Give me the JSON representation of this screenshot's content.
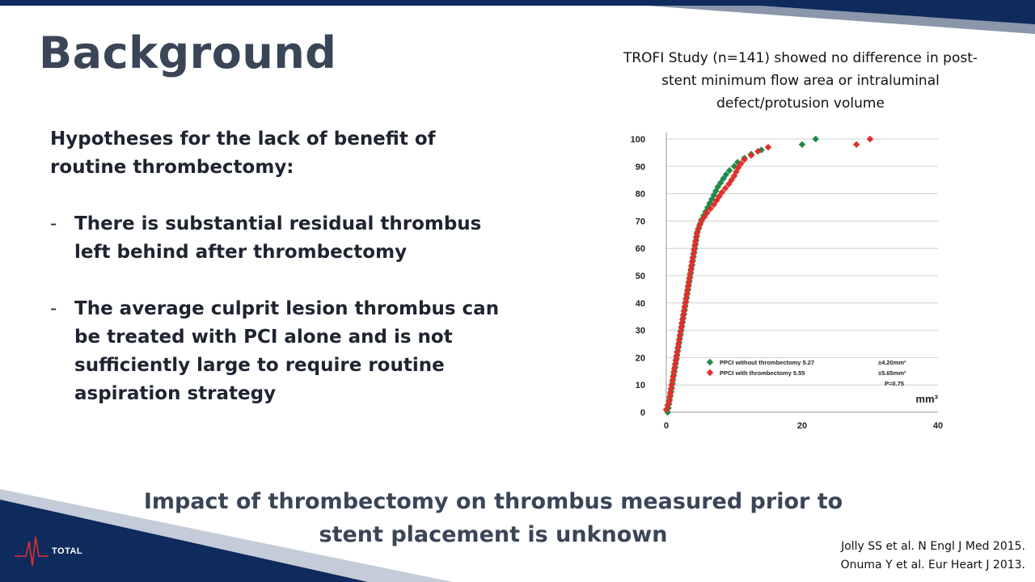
{
  "slide": {
    "title": "Background",
    "hypotheses_heading": "Hypotheses for the lack of benefit of routine thrombectomy:",
    "bullets": [
      {
        "dash": "-",
        "text": "There is substantial residual thrombus left behind after thrombectomy"
      },
      {
        "dash": "-",
        "text": "The average culprit lesion thrombus can be treated with PCI alone and is not sufficiently large to require routine aspiration strategy"
      }
    ],
    "chart_caption": "TROFI Study (n=141) showed no difference in post-stent minimum flow area or intraluminal defect/protusion volume",
    "impact_statement": "Impact of thrombectomy on thrombus measured prior to stent placement is unknown",
    "references": [
      "Jolly SS et al. N Engl J Med 2015.",
      "Onuma Y et al.  Eur Heart J 2013."
    ],
    "logo_text": "TOTAL",
    "colors": {
      "navy": "#0f2a5c",
      "title": "#3a4558",
      "green": "#1f8a4c",
      "red": "#e0302a"
    }
  },
  "chart_data": {
    "type": "scatter",
    "title": "",
    "xlabel": "mm³",
    "ylabel": "",
    "xlim": [
      0,
      40
    ],
    "ylim": [
      0,
      100
    ],
    "x_ticks": [
      0,
      20,
      40
    ],
    "y_ticks": [
      0,
      10,
      20,
      30,
      40,
      50,
      60,
      70,
      80,
      90,
      100
    ],
    "grid": true,
    "legend_position": "lower-right",
    "legend_stats": [
      "±4.20mm³",
      "±5.65mm³"
    ],
    "p_value_label": "P=0.75",
    "series": [
      {
        "name": "PPCI without thrombectomy 5.27",
        "color": "#1f8a4c",
        "points": [
          [
            0.2,
            0
          ],
          [
            0.3,
            1.5
          ],
          [
            0.4,
            3
          ],
          [
            0.5,
            4.5
          ],
          [
            0.6,
            6
          ],
          [
            0.7,
            7.5
          ],
          [
            0.8,
            9
          ],
          [
            0.9,
            10.5
          ],
          [
            1.0,
            12
          ],
          [
            1.1,
            13.5
          ],
          [
            1.2,
            15
          ],
          [
            1.3,
            16.5
          ],
          [
            1.4,
            18
          ],
          [
            1.5,
            19.5
          ],
          [
            1.6,
            21
          ],
          [
            1.7,
            22.5
          ],
          [
            1.8,
            24
          ],
          [
            1.9,
            25.5
          ],
          [
            2.0,
            27
          ],
          [
            2.1,
            28.5
          ],
          [
            2.2,
            30
          ],
          [
            2.3,
            31.5
          ],
          [
            2.4,
            33
          ],
          [
            2.5,
            34.5
          ],
          [
            2.6,
            36
          ],
          [
            2.7,
            37.5
          ],
          [
            2.8,
            39
          ],
          [
            2.9,
            40.5
          ],
          [
            3.0,
            42
          ],
          [
            3.1,
            43.5
          ],
          [
            3.2,
            45
          ],
          [
            3.3,
            46.5
          ],
          [
            3.4,
            48
          ],
          [
            3.5,
            49.5
          ],
          [
            3.6,
            51
          ],
          [
            3.7,
            52.5
          ],
          [
            3.8,
            54
          ],
          [
            3.9,
            55.5
          ],
          [
            4.0,
            57
          ],
          [
            4.1,
            58.5
          ],
          [
            4.2,
            60
          ],
          [
            4.3,
            61.5
          ],
          [
            4.4,
            63
          ],
          [
            4.5,
            64.5
          ],
          [
            4.6,
            66
          ],
          [
            4.8,
            67.5
          ],
          [
            5.0,
            69
          ],
          [
            5.2,
            70.5
          ],
          [
            5.5,
            72
          ],
          [
            5.8,
            73.5
          ],
          [
            6.1,
            75
          ],
          [
            6.4,
            76.5
          ],
          [
            6.7,
            78
          ],
          [
            7.0,
            79.5
          ],
          [
            7.3,
            81
          ],
          [
            7.6,
            82.5
          ],
          [
            8.0,
            84
          ],
          [
            8.4,
            85.5
          ],
          [
            8.8,
            87
          ],
          [
            9.3,
            88.5
          ],
          [
            10.0,
            90
          ],
          [
            10.5,
            91.5
          ],
          [
            11.5,
            93
          ],
          [
            12.5,
            94.5
          ],
          [
            14.0,
            96
          ],
          [
            20.0,
            98
          ],
          [
            22.0,
            100
          ]
        ]
      },
      {
        "name": "PPCI with thrombectomy 5.55",
        "color": "#e0302a",
        "points": [
          [
            0,
            1
          ],
          [
            0.2,
            2.5
          ],
          [
            0.4,
            4
          ],
          [
            0.5,
            5.5
          ],
          [
            0.6,
            7
          ],
          [
            0.7,
            8.5
          ],
          [
            0.8,
            10
          ],
          [
            0.9,
            11.5
          ],
          [
            1.0,
            13
          ],
          [
            1.1,
            14.5
          ],
          [
            1.2,
            16
          ],
          [
            1.3,
            17.5
          ],
          [
            1.4,
            19
          ],
          [
            1.5,
            20.5
          ],
          [
            1.6,
            22
          ],
          [
            1.7,
            23.5
          ],
          [
            1.8,
            25
          ],
          [
            1.9,
            26.5
          ],
          [
            2.0,
            28
          ],
          [
            2.1,
            29.5
          ],
          [
            2.2,
            31
          ],
          [
            2.3,
            32.5
          ],
          [
            2.4,
            34
          ],
          [
            2.5,
            35.5
          ],
          [
            2.6,
            37
          ],
          [
            2.7,
            38.5
          ],
          [
            2.8,
            40
          ],
          [
            2.9,
            41.5
          ],
          [
            3.0,
            43
          ],
          [
            3.1,
            44.5
          ],
          [
            3.2,
            46
          ],
          [
            3.3,
            47.5
          ],
          [
            3.4,
            49
          ],
          [
            3.5,
            50.5
          ],
          [
            3.6,
            52
          ],
          [
            3.7,
            53.5
          ],
          [
            3.8,
            55
          ],
          [
            3.9,
            56.5
          ],
          [
            4.0,
            58
          ],
          [
            4.1,
            59.5
          ],
          [
            4.2,
            61
          ],
          [
            4.3,
            62.5
          ],
          [
            4.4,
            64
          ],
          [
            4.5,
            65.5
          ],
          [
            4.7,
            67
          ],
          [
            4.9,
            68.5
          ],
          [
            5.2,
            70
          ],
          [
            5.6,
            71.5
          ],
          [
            6.0,
            73
          ],
          [
            6.5,
            74.5
          ],
          [
            7.0,
            76
          ],
          [
            7.4,
            77.5
          ],
          [
            7.8,
            79
          ],
          [
            8.2,
            80.5
          ],
          [
            8.7,
            82
          ],
          [
            9.2,
            83.5
          ],
          [
            9.6,
            85
          ],
          [
            10.0,
            86.5
          ],
          [
            10.3,
            88
          ],
          [
            10.6,
            89.5
          ],
          [
            11.0,
            91
          ],
          [
            11.5,
            92.5
          ],
          [
            12.5,
            94
          ],
          [
            13.5,
            95.5
          ],
          [
            15.0,
            97
          ],
          [
            28.0,
            98
          ],
          [
            30.0,
            100
          ]
        ]
      }
    ]
  }
}
